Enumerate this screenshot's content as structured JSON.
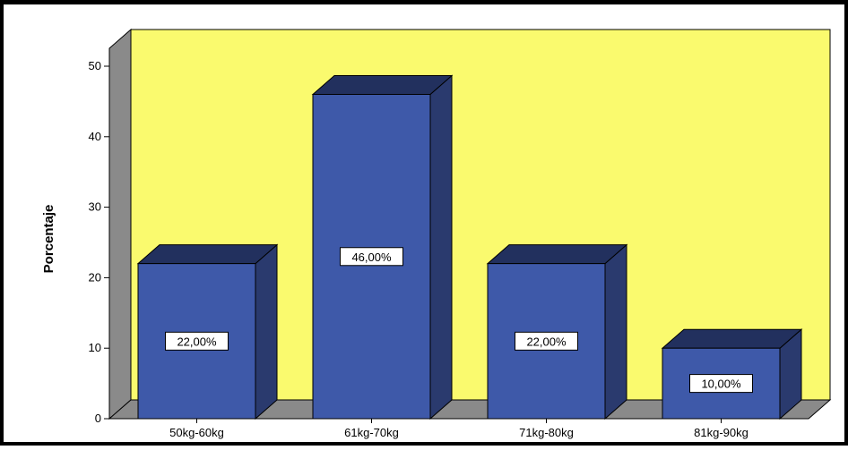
{
  "chart_data": {
    "type": "bar",
    "categories": [
      "50kg-60kg",
      "61kg-70kg",
      "71kg-80kg",
      "81kg-90kg"
    ],
    "values": [
      22,
      46,
      22,
      10
    ],
    "data_labels": [
      "22,00%",
      "46,00%",
      "22,00%",
      "10,00%"
    ],
    "ylabel": "Porcentaje",
    "xlabel": "",
    "ylim": [
      0,
      50
    ],
    "yticks": [
      "0",
      "10",
      "20",
      "30",
      "40",
      "50"
    ],
    "grid": false,
    "legend": "none",
    "three_d": true,
    "colors": {
      "bar_front": "#3e59a9",
      "bar_side": "#2a3a6e",
      "bar_top": "#22305e",
      "wall": "#fafa6e",
      "left_wall": "#8a8a8a",
      "floor": "#8a8a8a"
    }
  }
}
